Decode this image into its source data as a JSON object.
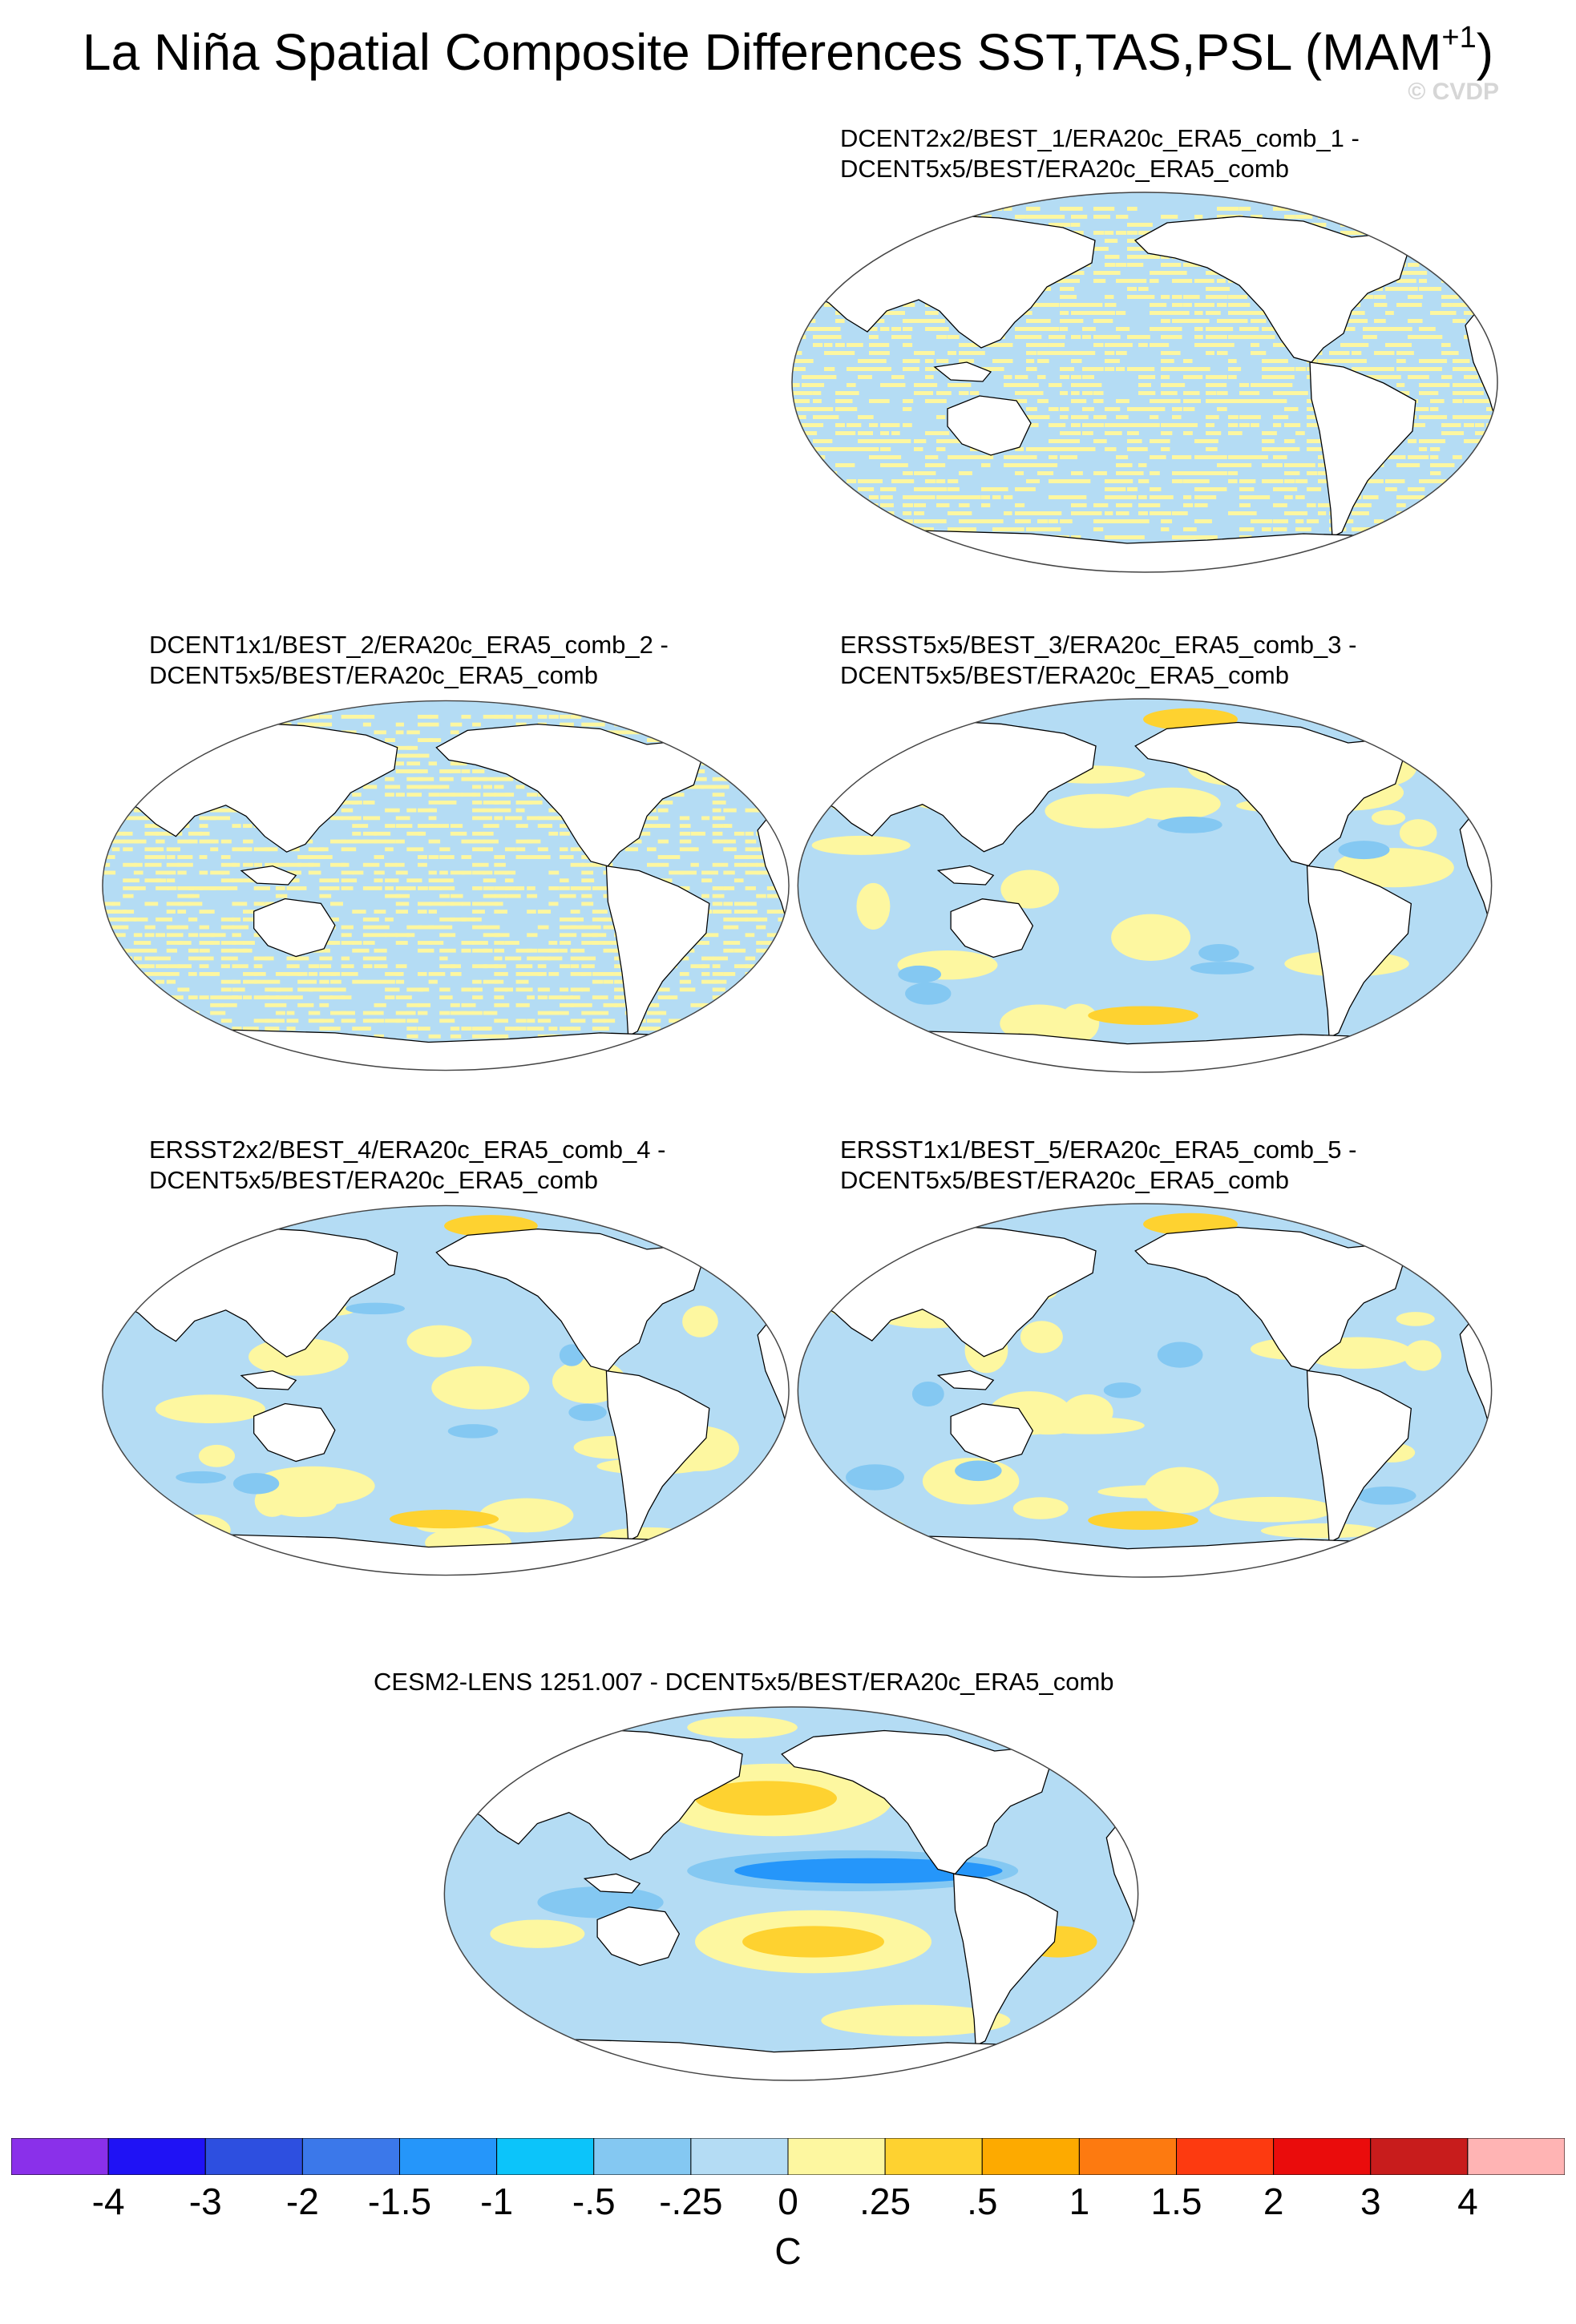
{
  "title": {
    "main": "La Niña Spatial Composite Differences SST,TAS,PSL (MAM",
    "sup": "+1",
    "close": ")"
  },
  "watermark": "© CVDP",
  "chart_data": [
    {
      "type": "heatmap",
      "projection": "robinson",
      "line1": "DCENT2x2/BEST_1/ERA20c_ERA5_comb_1 -",
      "line2": "DCENT5x5/BEST/ERA20c_ERA5_comb",
      "pattern": "striped_near_zero"
    },
    {
      "type": "heatmap",
      "projection": "robinson",
      "line1": "DCENT1x1/BEST_2/ERA20c_ERA5_comb_2 -",
      "line2": "DCENT5x5/BEST/ERA20c_ERA5_comb",
      "pattern": "striped_near_zero"
    },
    {
      "type": "heatmap",
      "projection": "robinson",
      "line1": "ERSST5x5/BEST_3/ERA20c_ERA5_comb_3 -",
      "line2": "DCENT5x5/BEST/ERA20c_ERA5_comb",
      "pattern": "weak_blobs"
    },
    {
      "type": "heatmap",
      "projection": "robinson",
      "line1": "ERSST2x2/BEST_4/ERA20c_ERA5_comb_4 -",
      "line2": "DCENT5x5/BEST/ERA20c_ERA5_comb",
      "pattern": "weak_blobs"
    },
    {
      "type": "heatmap",
      "projection": "robinson",
      "line1": "ERSST1x1/BEST_5/ERA20c_ERA5_comb_5 -",
      "line2": "DCENT5x5/BEST/ERA20c_ERA5_comb",
      "pattern": "weak_blobs"
    },
    {
      "type": "heatmap",
      "projection": "robinson",
      "line1": "CESM2-LENS 1251.007 - DCENT5x5/BEST/ERA20c_ERA5_comb",
      "line2": "",
      "pattern": "la_nina_tongue"
    }
  ],
  "colorbar": {
    "colors": [
      "#8a30ea",
      "#1f12f5",
      "#2d4fe0",
      "#3b78ea",
      "#2596fa",
      "#0cc4fa",
      "#84c8f2",
      "#b4dcf4",
      "#fdf7a0",
      "#fed230",
      "#fdaa00",
      "#fd7a10",
      "#fd3a10",
      "#ea0c0c",
      "#c81c1c",
      "#ffb4b4"
    ],
    "ticks": [
      "-4",
      "-3",
      "-2",
      "-1.5",
      "-1",
      "-.5",
      "-.25",
      "0",
      ".25",
      ".5",
      "1",
      "1.5",
      "2",
      "3",
      "4"
    ],
    "units": "C"
  }
}
